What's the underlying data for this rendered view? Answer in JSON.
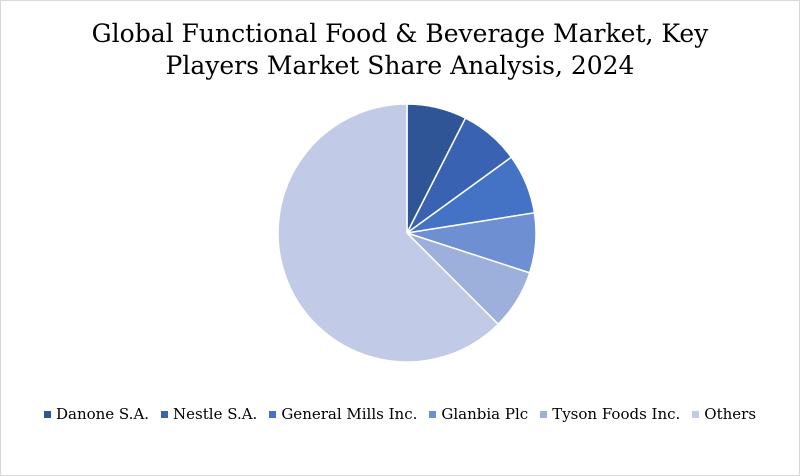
{
  "chart_data": {
    "type": "pie",
    "title_lines": [
      "Global Functional Food & Beverage Market, Key",
      "Players Market Share Analysis, 2024"
    ],
    "categories": [
      "Danone S.A.",
      "Nestle S.A.",
      "General Mills Inc.",
      "Glanbia Plc",
      "Tyson Foods Inc.",
      "Others"
    ],
    "values": [
      7.5,
      7.5,
      7.5,
      7.5,
      7.5,
      62.5
    ],
    "colors": [
      "#2f5597",
      "#3a62b3",
      "#4472c4",
      "#6f8fd3",
      "#9dafdb",
      "#c1cbe7"
    ],
    "start_angle_deg": 0,
    "direction": "clockwise",
    "legend_position": "bottom"
  }
}
